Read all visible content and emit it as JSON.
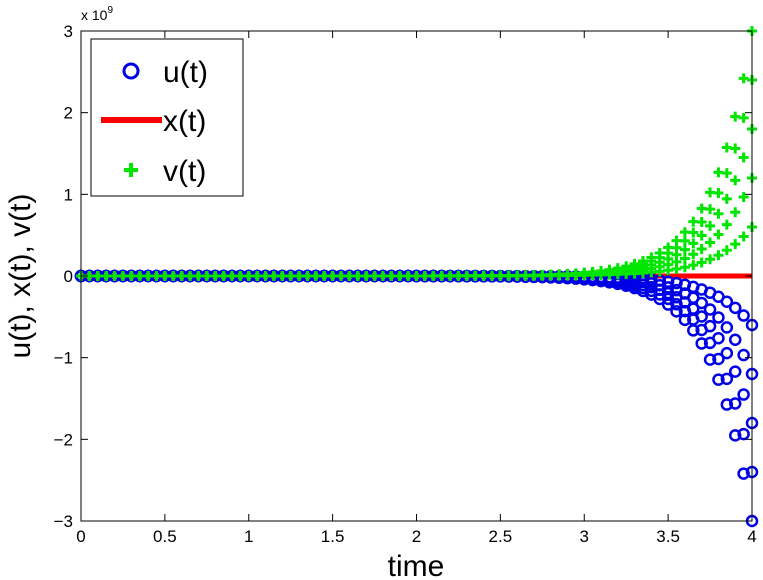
{
  "chart_data": {
    "type": "scatter",
    "title": "",
    "xlabel": "time",
    "ylabel": "u(t), x(t), v(t)",
    "y_exponent_label": "x 10",
    "y_exponent_power": "9",
    "xlim": [
      0,
      4
    ],
    "ylim": [
      -3,
      3
    ],
    "y_scale_factor": 1000000000,
    "xticks": [
      0,
      0.5,
      1,
      1.5,
      2,
      2.5,
      3,
      3.5,
      4
    ],
    "xtick_labels": [
      "0",
      "0.5",
      "1",
      "1.5",
      "2",
      "2.5",
      "3",
      "3.5",
      "4"
    ],
    "yticks": [
      -3,
      -2,
      -1,
      0,
      1,
      2,
      3
    ],
    "ytick_labels": [
      "−3",
      "−2",
      "−1",
      "0",
      "1",
      "2",
      "3"
    ],
    "grid": false,
    "legend_position": "top-left",
    "x_spacing": 0.05,
    "family_multipliers": [
      1,
      2,
      3,
      4,
      5
    ],
    "growth_rate": 4.3,
    "series": [
      {
        "name": "u(t)",
        "marker": "circle",
        "color": "#0000e6",
        "final_values": [
          -0.6,
          -1.2,
          -1.8,
          -2.4,
          -3.0
        ]
      },
      {
        "name": "x(t)",
        "marker": "line",
        "color": "#ff0000",
        "final_values": [
          0
        ]
      },
      {
        "name": "v(t)",
        "marker": "plus",
        "color": "#00e600",
        "final_values": [
          0.6,
          1.2,
          1.8,
          2.4,
          3.0
        ]
      }
    ]
  }
}
